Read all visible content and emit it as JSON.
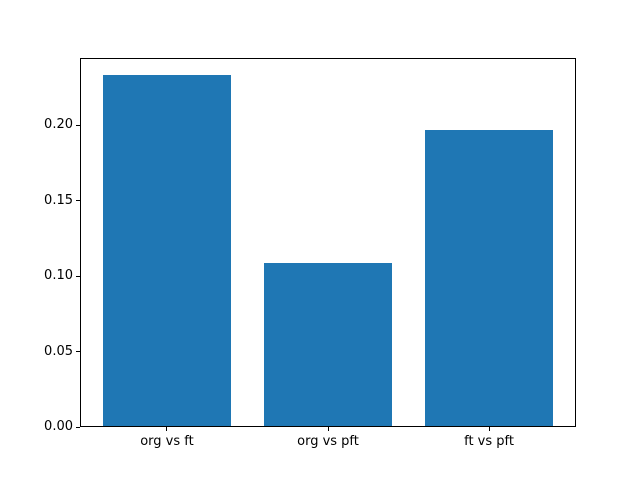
{
  "figure": {
    "background_color": "#ffffff",
    "text_color": "#000000"
  },
  "chart_data": {
    "type": "bar",
    "categories": [
      "org vs ft",
      "org vs pft",
      "ft vs pft"
    ],
    "values": [
      0.233,
      0.109,
      0.197
    ],
    "title": "",
    "xlabel": "",
    "ylabel": "",
    "ylim": [
      0,
      0.2446
    ],
    "yticks": [
      0,
      0.05,
      0.1,
      0.15,
      0.2
    ],
    "ytick_labels": [
      "0.00",
      "0.05",
      "0.10",
      "0.15",
      "0.20"
    ],
    "bar_color": "#1f77b4",
    "bar_width_fraction": 0.8,
    "grid": false,
    "legend_position": "none"
  }
}
